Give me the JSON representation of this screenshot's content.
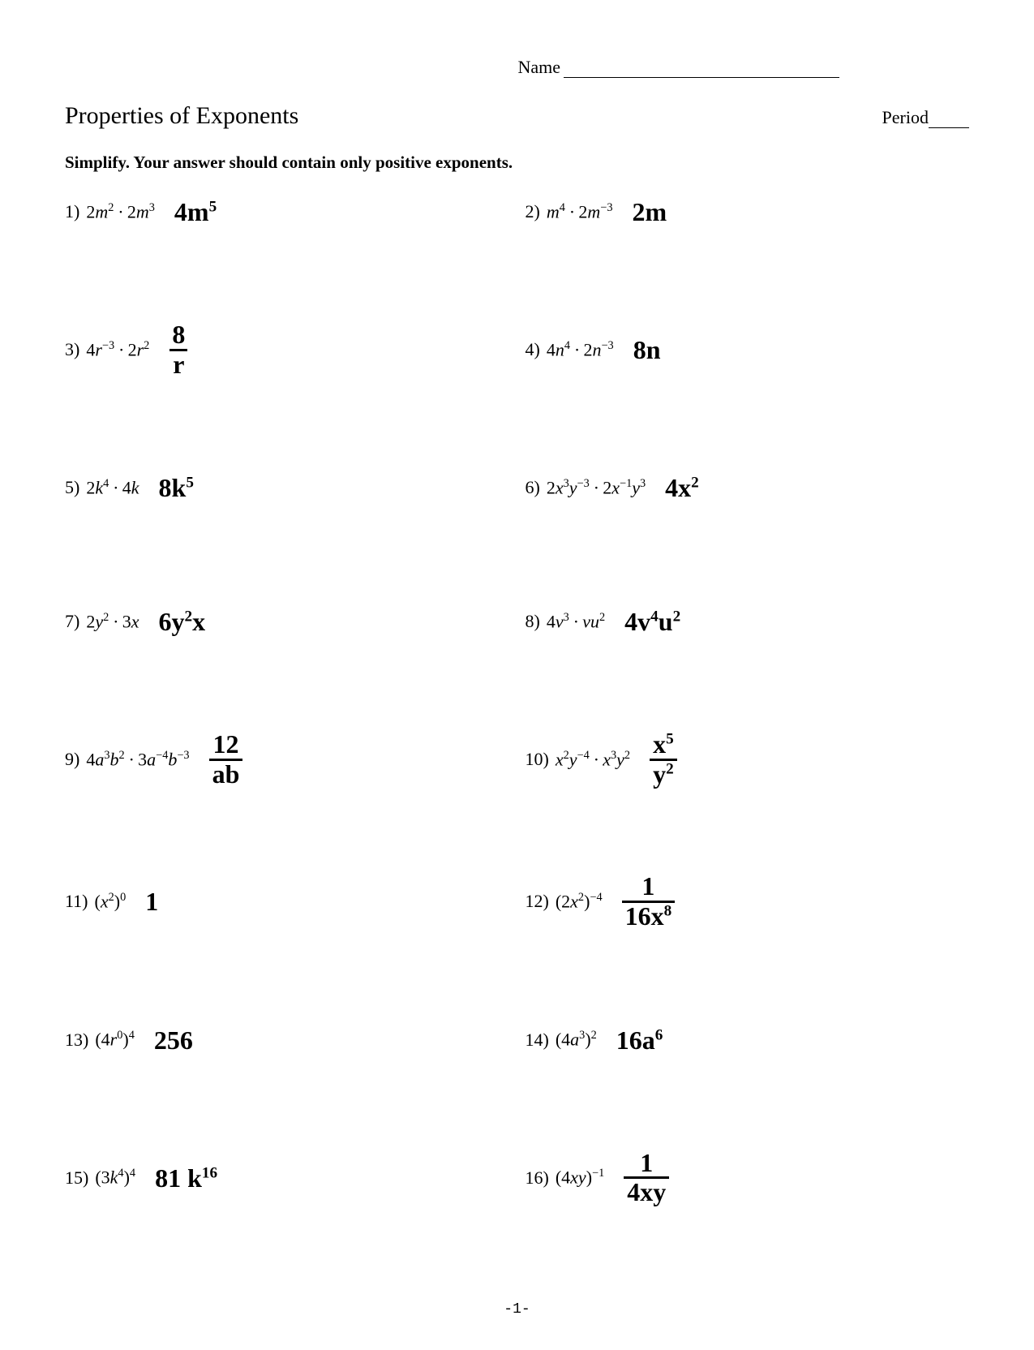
{
  "header": {
    "name_label": "Name",
    "title": "Properties of Exponents",
    "period_label": "Period",
    "instructions": "Simplify.  Your answer should contain only positive exponents."
  },
  "problems": [
    {
      "num": "1)",
      "expr_html": "<span class='n'>2</span>m<sup>2</sup> · <span class='n'>2</span>m<sup>3</sup>",
      "answer_html": "4m<sup>5</sup>"
    },
    {
      "num": "2)",
      "expr_html": "m<sup>4</sup> · <span class='n'>2</span>m<sup>−3</sup>",
      "answer_html": "2m"
    },
    {
      "num": "3)",
      "expr_html": "<span class='n'>4</span>r<sup>−3</sup> · <span class='n'>2</span>r<sup>2</sup>",
      "answer_html": "<span class='frac'><span class='num'>8</span><span class='den'>r</span></span>"
    },
    {
      "num": "4)",
      "expr_html": "<span class='n'>4</span>n<sup>4</sup> · <span class='n'>2</span>n<sup>−3</sup>",
      "answer_html": "8n"
    },
    {
      "num": "5)",
      "expr_html": "<span class='n'>2</span>k<sup>4</sup> · <span class='n'>4</span>k",
      "answer_html": "8k<sup>5</sup>"
    },
    {
      "num": "6)",
      "expr_html": "<span class='n'>2</span>x<sup>3</sup>y<sup>−3</sup> · <span class='n'>2</span>x<sup>−1</sup>y<sup>3</sup>",
      "answer_html": "4x<sup>2</sup>"
    },
    {
      "num": "7)",
      "expr_html": "<span class='n'>2</span>y<sup>2</sup> · <span class='n'>3</span>x",
      "answer_html": "6y<sup>2</sup>x"
    },
    {
      "num": "8)",
      "expr_html": "<span class='n'>4</span>v<sup>3</sup> · vu<sup>2</sup>",
      "answer_html": "4v<sup>4</sup>u<sup>2</sup>"
    },
    {
      "num": "9)",
      "expr_html": "<span class='n'>4</span>a<sup>3</sup>b<sup>2</sup> · <span class='n'>3</span>a<sup>−4</sup>b<sup>−3</sup>",
      "answer_html": "<span class='frac'><span class='num'>12</span><span class='den'>ab</span></span>"
    },
    {
      "num": "10)",
      "expr_html": "x<sup>2</sup>y<sup>−4</sup> · x<sup>3</sup>y<sup>2</sup>",
      "answer_html": "<span class='frac'><span class='num'>x<sup>5</sup></span><span class='den'>y<sup>2</sup></span></span>"
    },
    {
      "num": "11)",
      "expr_html": "<span class='n'>(</span>x<sup>2</sup><span class='n'>)</span><sup>0</sup>",
      "answer_html": "1"
    },
    {
      "num": "12)",
      "expr_html": "<span class='n'>(2</span>x<sup>2</sup><span class='n'>)</span><sup>−4</sup>",
      "answer_html": "<span class='frac'><span class='num'>1</span><span class='den'>16x<sup>8</sup></span></span>"
    },
    {
      "num": "13)",
      "expr_html": "<span class='n'>(4</span>r<sup>0</sup><span class='n'>)</span><sup>4</sup>",
      "answer_html": "256"
    },
    {
      "num": "14)",
      "expr_html": "<span class='n'>(4</span>a<sup>3</sup><span class='n'>)</span><sup>2</sup>",
      "answer_html": "16a<sup>6</sup>"
    },
    {
      "num": "15)",
      "expr_html": "<span class='n'>(3</span>k<sup>4</sup><span class='n'>)</span><sup>4</sup>",
      "answer_html": "81 k<sup>16</sup>"
    },
    {
      "num": "16)",
      "expr_html": "<span class='n'>(4</span>xy<span class='n'>)</span><sup>−1</sup>",
      "answer_html": "<span class='frac'><span class='num'>1</span><span class='den'>4xy</span></span>"
    }
  ],
  "footer": {
    "page_number": "-1-"
  }
}
